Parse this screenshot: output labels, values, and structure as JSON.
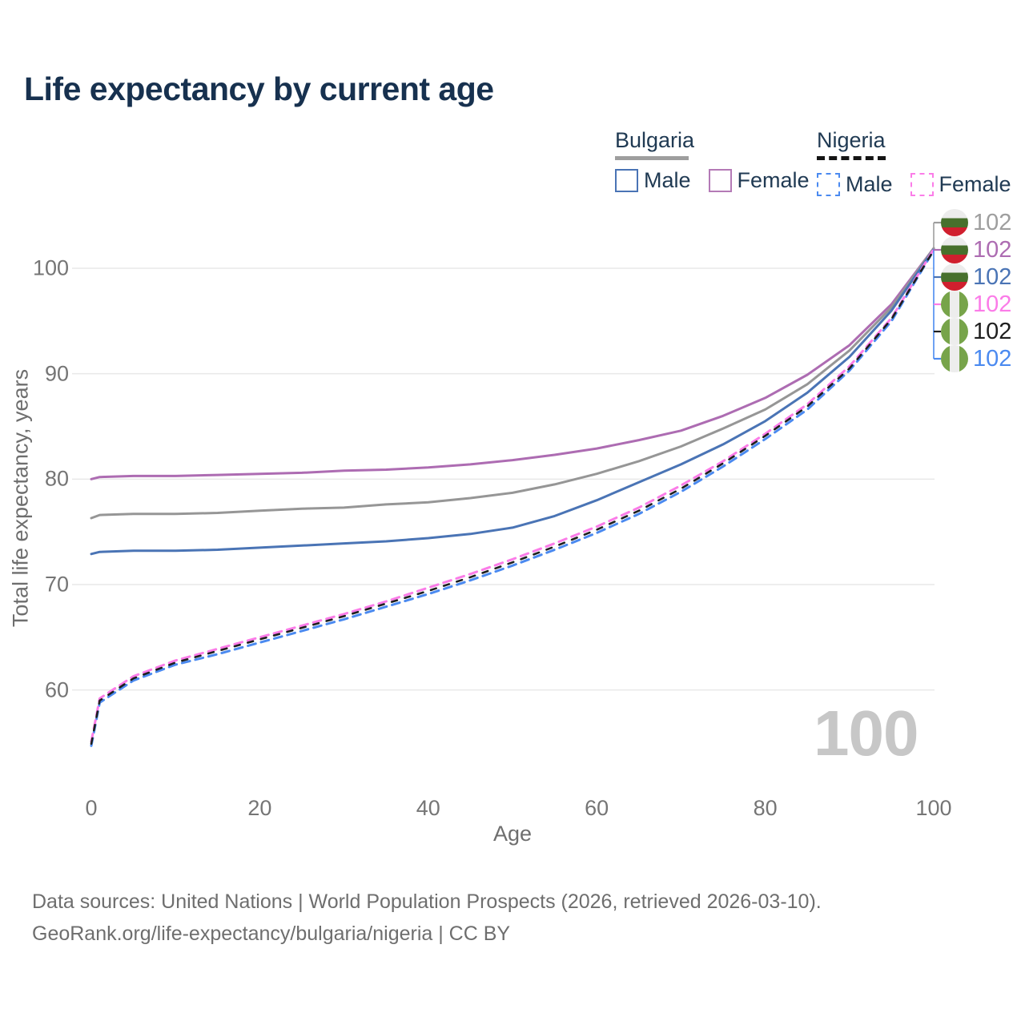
{
  "title": "Life expectancy by current age",
  "legend": {
    "bulgaria": {
      "name": "Bulgaria",
      "male": "Male",
      "female": "Female"
    },
    "nigeria": {
      "name": "Nigeria",
      "male": "Male",
      "female": "Female"
    }
  },
  "axes": {
    "y_title": "Total life expectancy, years",
    "x_title": "Age"
  },
  "watermark": "100",
  "footer": {
    "line1": "Data sources: United Nations | World Population Prospects (2026, retrieved 2026-03-10).",
    "line2": "GeoRank.org/life-expectancy/bulgaria/nigeria | CC BY"
  },
  "colors": {
    "bulgaria_male": "#4a74b5",
    "bulgaria_female": "#ad6cb2",
    "bulgaria_both": "#969696",
    "nigeria_male": "#4b8af0",
    "nigeria_female": "#fb7ce8",
    "nigeria_both": "#1f1f1f",
    "gridline": "#e9e9e9"
  },
  "end_labels": [
    {
      "flag": "bulgaria",
      "series": "bulgaria-both",
      "value": "102",
      "color": "#9e9e9e"
    },
    {
      "flag": "bulgaria",
      "series": "bulgaria-female",
      "value": "102",
      "color": "#ad6cb2"
    },
    {
      "flag": "bulgaria",
      "series": "bulgaria-male",
      "value": "102",
      "color": "#4a74b5"
    },
    {
      "flag": "nigeria",
      "series": "nigeria-female",
      "value": "102",
      "color": "#fb7ce8"
    },
    {
      "flag": "nigeria",
      "series": "nigeria-both",
      "value": "102",
      "color": "#1f1f1f"
    },
    {
      "flag": "nigeria",
      "series": "nigeria-male",
      "value": "102",
      "color": "#4b8af0"
    }
  ],
  "chart_data": {
    "type": "line",
    "title": "Life expectancy by current age",
    "xlabel": "Age",
    "ylabel": "Total life expectancy, years",
    "xlim": [
      0,
      100
    ],
    "ylim": [
      54,
      103
    ],
    "x_ticks": [
      0,
      20,
      40,
      60,
      80,
      100
    ],
    "y_ticks": [
      60,
      70,
      80,
      90,
      100
    ],
    "grid": "horizontal",
    "legend_position": "top-right",
    "x": [
      0,
      1,
      5,
      10,
      15,
      20,
      25,
      30,
      35,
      40,
      45,
      50,
      55,
      60,
      65,
      70,
      75,
      80,
      85,
      90,
      95,
      100
    ],
    "series": [
      {
        "name": "Bulgaria Female",
        "id": "bulgaria-female",
        "color": "#ad6cb2",
        "style": "solid",
        "values": [
          80.0,
          80.2,
          80.3,
          80.3,
          80.4,
          80.5,
          80.6,
          80.8,
          80.9,
          81.1,
          81.4,
          81.8,
          82.3,
          82.9,
          83.7,
          84.6,
          86.0,
          87.7,
          89.9,
          92.7,
          96.6,
          101.9
        ]
      },
      {
        "name": "Bulgaria Both sexes",
        "id": "bulgaria-both",
        "color": "#969696",
        "style": "solid",
        "values": [
          76.3,
          76.6,
          76.7,
          76.7,
          76.8,
          77.0,
          77.2,
          77.3,
          77.6,
          77.8,
          78.2,
          78.7,
          79.5,
          80.5,
          81.7,
          83.1,
          84.8,
          86.6,
          89.0,
          92.2,
          96.3,
          101.9
        ]
      },
      {
        "name": "Bulgaria Male",
        "id": "bulgaria-male",
        "color": "#4a74b5",
        "style": "solid",
        "values": [
          72.9,
          73.1,
          73.2,
          73.2,
          73.3,
          73.5,
          73.7,
          73.9,
          74.1,
          74.4,
          74.8,
          75.4,
          76.5,
          78.0,
          79.7,
          81.4,
          83.3,
          85.5,
          88.2,
          91.6,
          96.0,
          101.8
        ]
      },
      {
        "name": "Nigeria Male",
        "id": "nigeria-male",
        "color": "#4b8af0",
        "style": "dashed",
        "values": [
          54.7,
          58.8,
          60.9,
          62.4,
          63.4,
          64.5,
          65.6,
          66.7,
          67.9,
          69.1,
          70.4,
          71.8,
          73.3,
          74.9,
          76.7,
          78.8,
          81.2,
          83.8,
          86.6,
          90.3,
          95.0,
          101.7
        ]
      },
      {
        "name": "Nigeria Female",
        "id": "nigeria-female",
        "color": "#fb7ce8",
        "style": "dashed",
        "values": [
          55.1,
          59.2,
          61.3,
          62.8,
          63.9,
          65.0,
          66.1,
          67.2,
          68.4,
          69.7,
          71.0,
          72.4,
          73.9,
          75.5,
          77.3,
          79.4,
          81.7,
          84.3,
          87.1,
          90.7,
          95.3,
          101.8
        ]
      },
      {
        "name": "Nigeria Both sexes",
        "id": "nigeria-both",
        "color": "#1f1f1f",
        "style": "dashed-black",
        "values": [
          54.9,
          59.0,
          61.1,
          62.6,
          63.7,
          64.8,
          65.9,
          67.0,
          68.2,
          69.4,
          70.7,
          72.1,
          73.6,
          75.2,
          77.0,
          79.1,
          81.5,
          84.1,
          86.9,
          90.5,
          95.2,
          101.7
        ]
      }
    ]
  }
}
